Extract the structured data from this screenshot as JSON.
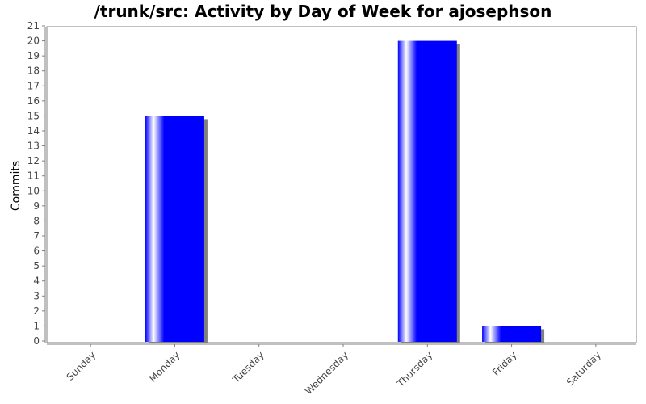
{
  "chart_data": {
    "type": "bar",
    "title": "/trunk/src: Activity by Day of Week for ajosephson",
    "xlabel": "",
    "ylabel": "Commits",
    "categories": [
      "Sunday",
      "Monday",
      "Tuesday",
      "Wednesday",
      "Thursday",
      "Friday",
      "Saturday"
    ],
    "values": [
      0,
      15,
      0,
      0,
      20,
      1,
      0
    ],
    "ylim": [
      0,
      21
    ],
    "yticks": [
      0,
      1,
      2,
      3,
      4,
      5,
      6,
      7,
      8,
      9,
      10,
      11,
      12,
      13,
      14,
      15,
      16,
      17,
      18,
      19,
      20,
      21
    ],
    "grid": false,
    "legend": "none",
    "colors": {
      "bar": "#0000ff",
      "bar_highlight": "#ffffff",
      "bar_shadow": "#808080",
      "plot_background": "#ffffff",
      "plot_border": "#808080"
    }
  }
}
